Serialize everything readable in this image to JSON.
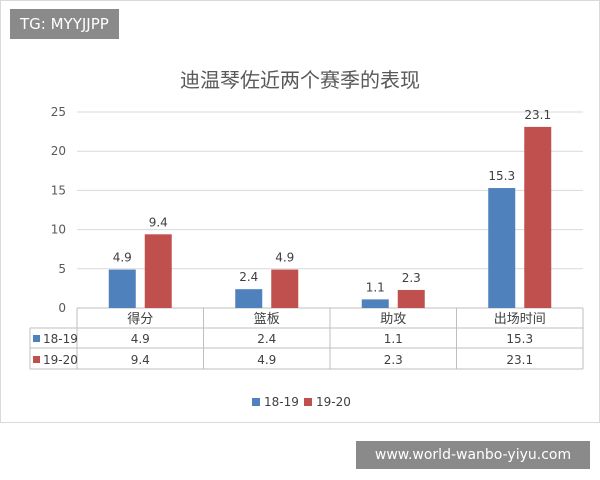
{
  "watermark": {
    "tg": "TG: MYYJJPP",
    "url": "www.world-wanbo-yiyu.com"
  },
  "chart_data": {
    "type": "bar",
    "title": "迪温琴佐近两个赛季的表现",
    "categories": [
      "得分",
      "篮板",
      "助攻",
      "出场时间"
    ],
    "series": [
      {
        "name": "18-19",
        "values": [
          4.9,
          2.4,
          1.1,
          15.3
        ],
        "color": "#4f81bd"
      },
      {
        "name": "19-20",
        "values": [
          9.4,
          4.9,
          2.3,
          23.1
        ],
        "color": "#c0504d"
      }
    ],
    "ylim": [
      0,
      25
    ],
    "yticks": [
      0,
      5,
      10,
      15,
      20,
      25
    ],
    "grid": true,
    "data_table": true,
    "legend": "bottom"
  }
}
